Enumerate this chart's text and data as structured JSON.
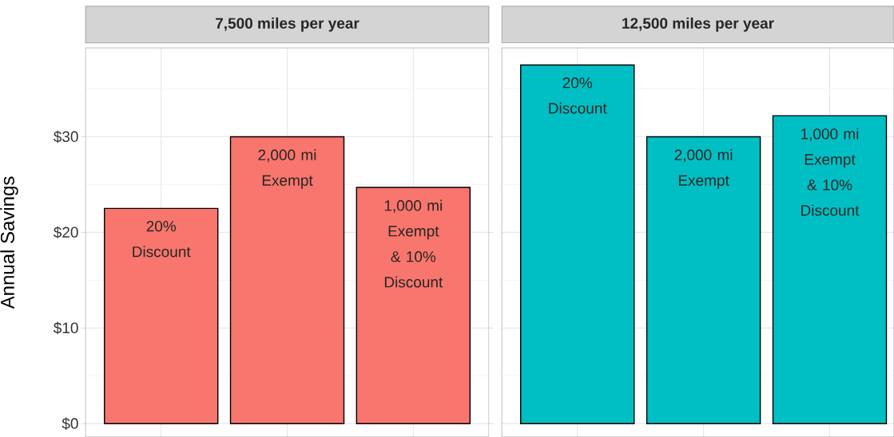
{
  "chart_data": [
    {
      "type": "bar",
      "title": "7,500 miles per year",
      "ylabel": "Annual Savings",
      "categories": [
        "20% Discount",
        "2,000 mi Exempt",
        "1,000 mi Exempt & 10% Discount"
      ],
      "values": [
        22.5,
        30,
        24.7
      ],
      "color": "#f8766d",
      "ylim": [
        -1.4,
        39.3
      ],
      "yticks": [
        {
          "value": 0,
          "label": "$0"
        },
        {
          "value": 5,
          "label": null
        },
        {
          "value": 10,
          "label": "$10"
        },
        {
          "value": 15,
          "label": null
        },
        {
          "value": 20,
          "label": "$20"
        },
        {
          "value": 25,
          "label": null
        },
        {
          "value": 30,
          "label": "$30"
        },
        {
          "value": 35,
          "label": null
        }
      ],
      "grid": true,
      "tick_labels": "y"
    },
    {
      "type": "bar",
      "title": "12,500 miles per year",
      "categories": [
        "20% Discount",
        "2,000 mi Exempt",
        "1,000 mi Exempt & 10% Discount"
      ],
      "values": [
        37.5,
        30,
        32.2
      ],
      "color": "#00bfc4",
      "ylim": [
        -1.4,
        39.3
      ],
      "yticks": [
        0,
        {
          "value": 5,
          "label": null
        },
        10,
        {
          "value": 15,
          "label": null
        },
        20,
        {
          "value": 25,
          "label": null
        },
        30,
        {
          "value": 35,
          "label": null
        }
      ],
      "grid": true,
      "tick_labels": false
    }
  ]
}
